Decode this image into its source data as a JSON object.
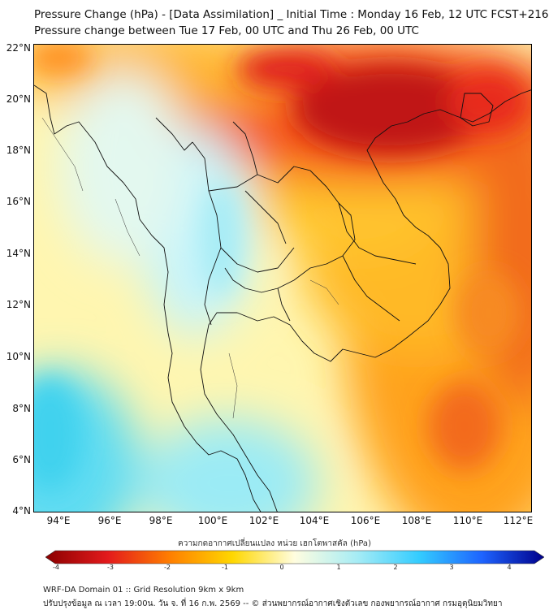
{
  "title_line1": "Pressure Change (hPa) - [Data Assimilation] _ Initial Time : Monday 16 Feb, 12 UTC FCST+216",
  "title_line2": "Pressure change between Tue 17 Feb, 00 UTC and Thu 26 Feb, 00 UTC",
  "lat_labels": [
    "22°N",
    "20°N",
    "18°N",
    "16°N",
    "14°N",
    "12°N",
    "10°N",
    "8°N",
    "6°N",
    "4°N"
  ],
  "lon_labels": [
    "94°E",
    "96°E",
    "98°E",
    "100°E",
    "102°E",
    "104°E",
    "106°E",
    "108°E",
    "110°E",
    "112°E"
  ],
  "colorbar": {
    "title": "ความกดอากาศเปลี่ยนแปลง หน่วย เฮกโตพาสคัล (hPa)",
    "ticks": [
      "-4",
      "-3",
      "-2",
      "-1",
      "0",
      "1",
      "2",
      "3",
      "4"
    ],
    "range": [
      -4,
      4
    ],
    "colors": {
      "minus4": "#8b0000",
      "minus3": "#e31a1c",
      "minus2": "#ff7f00",
      "minus1": "#ffd700",
      "zero": "#fffde0",
      "plus1": "#a6ecf5",
      "plus2": "#33ccff",
      "plus3": "#1e64ff",
      "plus4": "#00008b"
    }
  },
  "footer_line1": "WRF-DA Domain 01 :: Grid Resolution 9km x 9km",
  "footer_line2": "ปรับปรุงข้อมูล ณ เวลา 19:00น. วัน จ. ที่ 16 ก.พ. 2569 -- © ส่วนพยากรณ์อากาศเชิงตัวเลข กองพยากรณ์อากาศ กรมอุตุนิยมวิทยา"
}
